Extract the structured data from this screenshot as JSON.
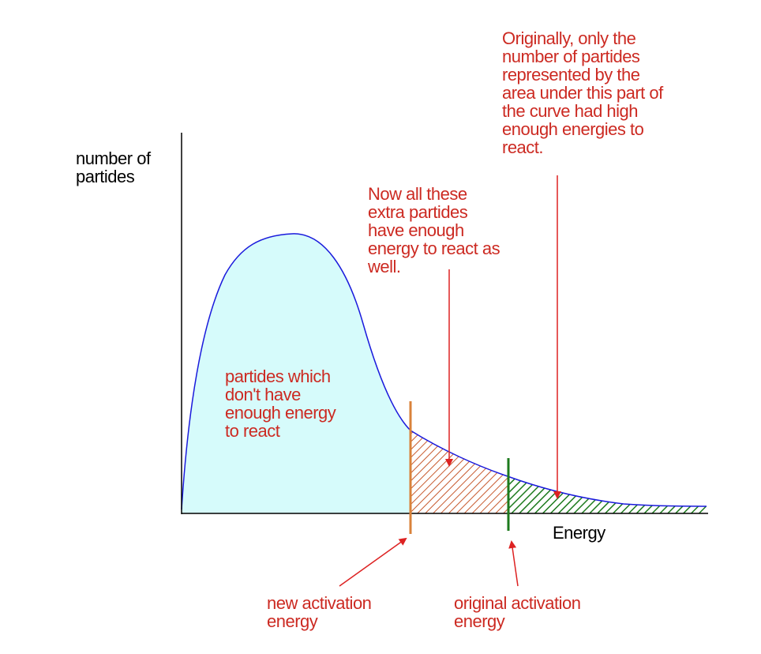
{
  "y_axis_label": [
    "number of",
    "partides"
  ],
  "x_axis_label": "Energy",
  "annotations": {
    "below_activation": [
      "partides which",
      "don't have",
      "enough energy",
      "to react"
    ],
    "extra_particles": [
      "Now all these",
      "extra partides",
      "have enough",
      "energy to react as",
      "well."
    ],
    "original_area": [
      "Originally, only the",
      "number of partides",
      "represented by the",
      "area under this part of",
      "the curve had high",
      "enough energies to",
      "react."
    ],
    "new_activation_energy": [
      "new activation",
      "energy"
    ],
    "original_activation_energy": [
      "original activation",
      "energy"
    ]
  },
  "colors": {
    "curve": "#1a1adc",
    "fill_below": "#d6fbfb",
    "new_activation_line": "#d9823a",
    "new_hatch": "#c75a2e",
    "original_activation_line": "#1d7a1d",
    "original_hatch": "#1d7a1d",
    "annotation_text": "#cc2a22",
    "arrows": "#dd2222",
    "axes": "#000000"
  }
}
